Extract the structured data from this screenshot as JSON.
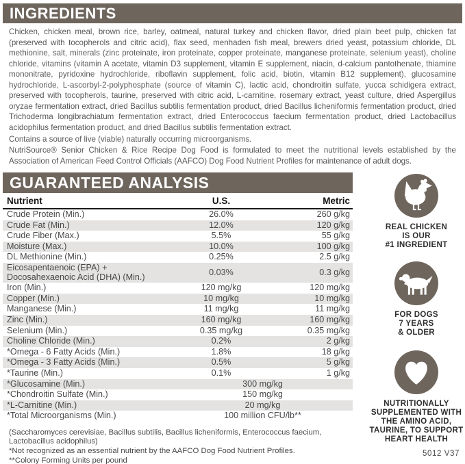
{
  "colors": {
    "bar": "#6e655c",
    "stripe": "#e4e3e1",
    "icon": "#6e655c"
  },
  "ingredients": {
    "title": "INGREDIENTS",
    "body": "Chicken, chicken meal, brown rice, barley, oatmeal, natural turkey and chicken flavor, dried plain beet pulp, chicken fat (preserved with tocopherols and citric acid), flax seed, menhaden fish meal, brewers dried yeast, potassium chloride, DL methionine, salt, minerals (zinc proteinate, iron proteinate, copper proteinate, manganese proteinate, selenium yeast), choline chloride, vitamins (vitamin A acetate, vitamin D3 supplement, vitamin E supplement, niacin, d-calcium pantothenate, thiamine mononitrate, pyridoxine hydrochloride, riboflavin supplement, folic acid, biotin, vitamin B12 supplement), glucosamine hydrochloride, L-ascorbyl-2-polyphosphate (source of vitamin C), lactic acid, chondroitin sulfate, yucca schidigera extract, preserved with tocopherols, taurine, preserved with citric acid, L-carnitine, rosemary extract, yeast culture, dried Aspergillus oryzae fermentation extract, dried Bacillus subtilis fermentation product, dried Bacillus licheniformis fermentation product, dried Trichoderma longibrachiatum fermentation extract, dried Enterococcus faecium fermentation product, dried Lactobacillus acidophilus fermentation product, and dried Bacillus subtilis fermentation extract.",
    "viable_note": "Contains a source of live (viable) naturally occurring microorganisms.",
    "aafco_statement": "NutriSource® Senior Chicken & Rice Recipe Dog Food is formulated to meet the nutritional levels established by the Association of American Feed Control Officials (AAFCO) Dog Food Nutrient Profiles for maintenance of adult dogs."
  },
  "guaranteed_analysis": {
    "title": "GUARANTEED ANALYSIS",
    "columns": [
      "Nutrient",
      "U.S.",
      "Metric"
    ],
    "rows": [
      {
        "nutrient": "Crude Protein (Min.)",
        "us": "26.0%",
        "metric": "260 g/kg"
      },
      {
        "nutrient": "Crude Fat (Min.)",
        "us": "12.0%",
        "metric": "120 g/kg"
      },
      {
        "nutrient": "Crude Fiber (Max.)",
        "us": "5.5%",
        "metric": "55 g/kg"
      },
      {
        "nutrient": "Moisture (Max.)",
        "us": "10.0%",
        "metric": "100 g/kg"
      },
      {
        "nutrient": "DL Methionine (Min.)",
        "us": "0.25%",
        "metric": "2.5 g/kg"
      },
      {
        "nutrient": "Eicosapentaenoic (EPA) +\nDocosahexaenoic Acid (DHA) (Min.)",
        "us": "0.03%",
        "metric": "0.3 g/kg"
      },
      {
        "nutrient": "Iron (Min.)",
        "us": "120 mg/kg",
        "metric": "120 mg/kg"
      },
      {
        "nutrient": "Copper (Min.)",
        "us": "10 mg/kg",
        "metric": "10 mg/kg"
      },
      {
        "nutrient": "Manganese (Min.)",
        "us": "11 mg/kg",
        "metric": "11 mg/kg"
      },
      {
        "nutrient": "Zinc (Min.)",
        "us": "160 mg/kg",
        "metric": "160 mg/kg"
      },
      {
        "nutrient": "Selenium (Min.)",
        "us": "0.35 mg/kg",
        "metric": "0.35 mg/kg"
      },
      {
        "nutrient": "Choline Chloride (Min.)",
        "us": "0.2%",
        "metric": "2 g/kg"
      },
      {
        "nutrient": "*Omega - 6 Fatty Acids (Min.)",
        "us": "1.8%",
        "metric": "18 g/kg"
      },
      {
        "nutrient": "*Omega - 3 Fatty Acids (Min.)",
        "us": "0.5%",
        "metric": "5 g/kg"
      },
      {
        "nutrient": "*Taurine (Min.)",
        "us": "0.1%",
        "metric": "1 g/kg"
      },
      {
        "nutrient": "*Glucosamine (Min.)",
        "span": true,
        "value": "300 mg/kg"
      },
      {
        "nutrient": "*Chondroitin Sulfate (Min.)",
        "span": true,
        "value": "150 mg/kg"
      },
      {
        "nutrient": "*L-Carnitine (Min.)",
        "span": true,
        "value": "20 mg/kg"
      },
      {
        "nutrient": "*Total Microorganisms (Min.)",
        "span": true,
        "value": "100 million CFU/lb**"
      }
    ],
    "footnotes": [
      "(Saccharomyces cerevisiae, Bacillus subtilis, Bacillus licheniformis, Enterococcus faecium, Lactobacillus acidophilus)",
      "*Not recognized as an essential nutrient by the AAFCO Dog Food Nutrient Profiles.",
      "**Colony Forming Units per pound"
    ]
  },
  "badges": [
    {
      "icon": "chicken-icon",
      "label": "REAL CHICKEN\nIS OUR\n#1 INGREDIENT"
    },
    {
      "icon": "dog-icon",
      "label": "FOR DOGS\n7 YEARS\n& OLDER"
    },
    {
      "icon": "heart-icon",
      "label": "NUTRITIONALLY\nSUPPLEMENTED WITH\nTHE AMINO ACID,\nTAURINE, TO SUPPORT\nHEART HEALTH"
    }
  ],
  "footer_code": "5012 V37"
}
